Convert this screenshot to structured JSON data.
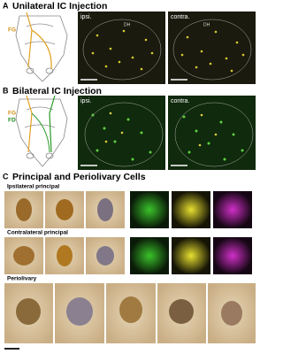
{
  "panels": [
    {
      "label": "A",
      "title": "Unilateral IC Injection",
      "tracers": [
        "FG"
      ],
      "images": [
        "ipsi.",
        "contra."
      ],
      "annotations": [
        "DH",
        "DH"
      ]
    },
    {
      "label": "B",
      "title": "Bilateral IC Injection",
      "tracers": [
        "FG",
        "FD"
      ],
      "images": [
        "ipsi.",
        "contra."
      ]
    },
    {
      "label": "C",
      "title": "Principal and Periolivary Cells",
      "rows": [
        "Ipsilateral principal",
        "Contralateral principal",
        "Periolivary"
      ]
    }
  ]
}
